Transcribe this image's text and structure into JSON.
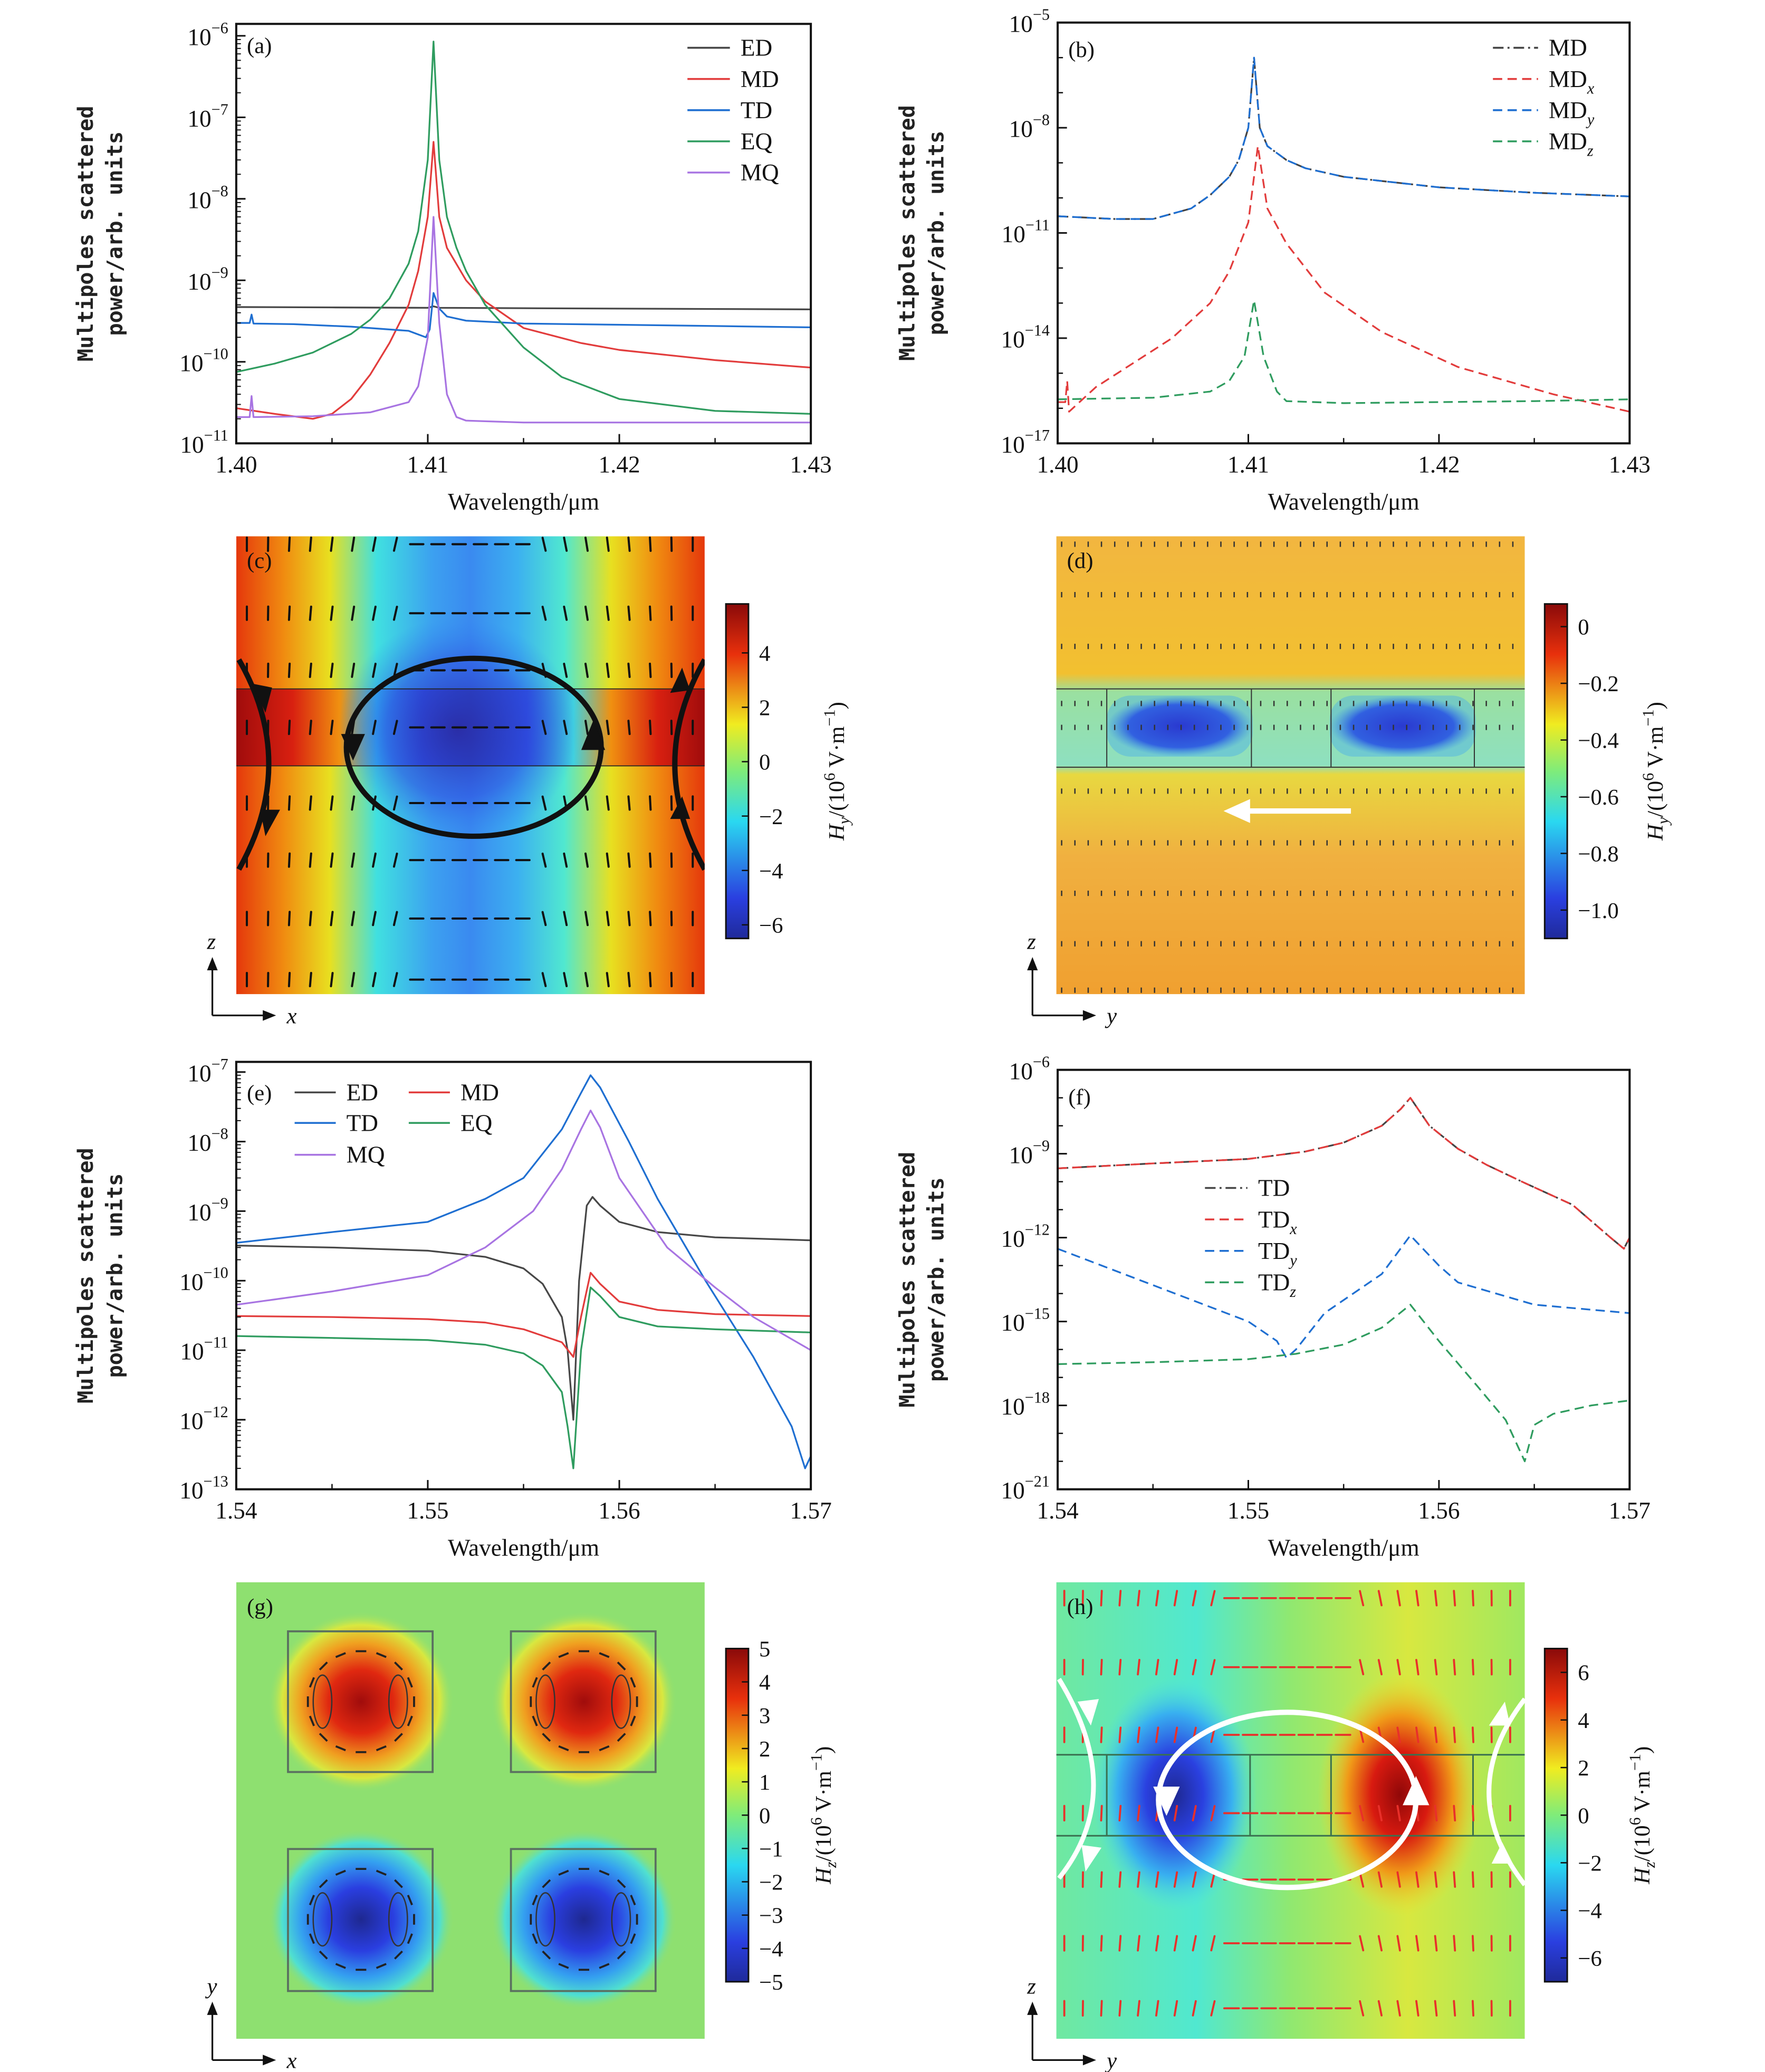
{
  "log_base": "10",
  "common": {
    "xlabel": "Wavelength/μm",
    "ylabel_line1": "Multipoles scattered",
    "ylabel_line2": "power/arb. units"
  },
  "chart_data": [
    {
      "panel": "(a)",
      "type": "line",
      "yscale": "log",
      "xlim": [
        1.4,
        1.43
      ],
      "xticks": [
        "1.40",
        "1.41",
        "1.42",
        "1.43"
      ],
      "ytick_exponents": [
        "−11",
        "−10",
        "−9",
        "−8",
        "−7",
        "−6"
      ],
      "ylim": [
        1e-11,
        1.4e-06
      ],
      "xlabel": "Wavelength/μm",
      "ylabel": "Multipoles scattered power/arb. units",
      "legend": "top-right",
      "series": [
        {
          "label": "ED",
          "color": "#474747",
          "style": "solid",
          "x": [
            1.4,
            1.405,
            1.41,
            1.4103,
            1.4106,
            1.415,
            1.42,
            1.425,
            1.43
          ],
          "y": [
            4.7e-10,
            4.65e-10,
            4.6e-10,
            4.8e-10,
            4.6e-10,
            4.55e-10,
            4.5e-10,
            4.45e-10,
            4.4e-10
          ]
        },
        {
          "label": "MD",
          "color": "#e23c3c",
          "style": "solid",
          "x": [
            1.4,
            1.402,
            1.404,
            1.405,
            1.406,
            1.407,
            1.408,
            1.409,
            1.4095,
            1.41,
            1.4103,
            1.4106,
            1.411,
            1.412,
            1.413,
            1.415,
            1.418,
            1.42,
            1.425,
            1.43
          ],
          "y": [
            2.7e-11,
            2.3e-11,
            2e-11,
            2.3e-11,
            3.5e-11,
            7e-11,
            1.7e-10,
            5e-10,
            1.3e-09,
            6e-09,
            5e-08,
            6e-09,
            2.5e-09,
            1e-09,
            5.5e-10,
            2.6e-10,
            1.7e-10,
            1.4e-10,
            1.05e-10,
            8.5e-11
          ]
        },
        {
          "label": "TD",
          "color": "#1f6fd1",
          "style": "solid",
          "x": [
            1.4,
            1.4007,
            1.4008,
            1.4009,
            1.403,
            1.406,
            1.409,
            1.4099,
            1.4101,
            1.4103,
            1.4106,
            1.411,
            1.412,
            1.415,
            1.42,
            1.425,
            1.43
          ],
          "y": [
            3e-10,
            3e-10,
            3.8e-10,
            2.95e-10,
            2.9e-10,
            2.7e-10,
            2.4e-10,
            2e-10,
            2.5e-10,
            7e-10,
            4.5e-10,
            3.6e-10,
            3.2e-10,
            2.95e-10,
            2.85e-10,
            2.75e-10,
            2.65e-10
          ]
        },
        {
          "label": "EQ",
          "color": "#2f9c5f",
          "style": "solid",
          "x": [
            1.4,
            1.402,
            1.404,
            1.406,
            1.407,
            1.408,
            1.409,
            1.4095,
            1.41,
            1.4103,
            1.4106,
            1.411,
            1.4115,
            1.412,
            1.413,
            1.415,
            1.417,
            1.42,
            1.425,
            1.43
          ],
          "y": [
            7.5e-11,
            9.5e-11,
            1.3e-10,
            2.2e-10,
            3.3e-10,
            6e-10,
            1.6e-09,
            4e-09,
            3e-08,
            8.5e-07,
            3e-08,
            6e-09,
            2.5e-09,
            1.3e-09,
            5e-10,
            1.5e-10,
            6.5e-11,
            3.5e-11,
            2.5e-11,
            2.3e-11
          ]
        },
        {
          "label": "MQ",
          "color": "#a874e2",
          "style": "solid",
          "x": [
            1.4,
            1.4007,
            1.4008,
            1.4009,
            1.404,
            1.407,
            1.409,
            1.4095,
            1.41,
            1.4103,
            1.4106,
            1.411,
            1.4115,
            1.412,
            1.415,
            1.42,
            1.43
          ],
          "y": [
            2.1e-11,
            2.1e-11,
            3.8e-11,
            2.1e-11,
            2.15e-11,
            2.4e-11,
            3.2e-11,
            5e-11,
            2e-10,
            6e-09,
            3e-10,
            4e-11,
            2.1e-11,
            1.9e-11,
            1.8e-11,
            1.8e-11,
            1.8e-11
          ]
        }
      ]
    },
    {
      "panel": "(b)",
      "type": "line",
      "yscale": "log",
      "xlim": [
        1.4,
        1.43
      ],
      "xticks": [
        "1.40",
        "1.41",
        "1.42",
        "1.43"
      ],
      "ytick_exponents": [
        "−17",
        "−14",
        "−11",
        "−8",
        "−5"
      ],
      "ylim": [
        1e-17,
        1e-05
      ],
      "xlabel": "Wavelength/μm",
      "ylabel": "Multipoles scattered power/arb. units",
      "legend": "top-right",
      "series": [
        {
          "label": "MD",
          "sub": "",
          "color": "#444444",
          "style": "dashdot",
          "x": [
            1.4,
            1.403,
            1.405,
            1.407,
            1.408,
            1.409,
            1.4095,
            1.41,
            1.4103,
            1.4106,
            1.411,
            1.412,
            1.413,
            1.415,
            1.42,
            1.425,
            1.43
          ],
          "y": [
            3e-11,
            2.5e-11,
            2.5e-11,
            5e-11,
            1.2e-10,
            4e-10,
            1.2e-09,
            1e-08,
            1e-06,
            1e-08,
            3e-09,
            1.2e-09,
            7e-10,
            4e-10,
            2e-10,
            1.4e-10,
            1.1e-10
          ]
        },
        {
          "label": "MD",
          "sub": "x",
          "color": "#e23c3c",
          "style": "dashed",
          "x": [
            1.4,
            1.4004,
            1.4005,
            1.4006,
            1.402,
            1.404,
            1.406,
            1.408,
            1.409,
            1.41,
            1.4105,
            1.411,
            1.412,
            1.414,
            1.417,
            1.421,
            1.426,
            1.43
          ],
          "y": [
            1.5e-16,
            1.5e-16,
            6e-16,
            8e-17,
            4e-16,
            2e-15,
            1e-14,
            1e-13,
            8e-13,
            2e-11,
            3e-09,
            5e-11,
            5e-12,
            2e-13,
            1.5e-14,
            1.5e-15,
            2.5e-16,
            8e-17
          ]
        },
        {
          "label": "MD",
          "sub": "y",
          "color": "#1f6fd1",
          "style": "dashed",
          "x": [
            1.4,
            1.403,
            1.405,
            1.407,
            1.408,
            1.409,
            1.4095,
            1.41,
            1.4103,
            1.4106,
            1.411,
            1.412,
            1.413,
            1.415,
            1.42,
            1.425,
            1.43
          ],
          "y": [
            3e-11,
            2.5e-11,
            2.5e-11,
            5e-11,
            1.2e-10,
            4e-10,
            1.2e-09,
            1e-08,
            1e-06,
            1e-08,
            3e-09,
            1.2e-09,
            7e-10,
            4e-10,
            2e-10,
            1.4e-10,
            1.1e-10
          ]
        },
        {
          "label": "MD",
          "sub": "z",
          "color": "#2f9c5f",
          "style": "dashed",
          "x": [
            1.4,
            1.405,
            1.408,
            1.409,
            1.4098,
            1.4103,
            1.4108,
            1.4115,
            1.412,
            1.415,
            1.42,
            1.425,
            1.43
          ],
          "y": [
            1.8e-16,
            2e-16,
            3e-16,
            6e-16,
            3e-15,
            1.2e-13,
            3e-15,
            3e-16,
            1.6e-16,
            1.4e-16,
            1.5e-16,
            1.6e-16,
            1.8e-16
          ]
        }
      ]
    },
    {
      "panel": "(e)",
      "type": "line",
      "yscale": "log",
      "xlim": [
        1.54,
        1.57
      ],
      "xticks": [
        "1.54",
        "1.55",
        "1.56",
        "1.57"
      ],
      "ytick_exponents": [
        "−13",
        "−12",
        "−11",
        "−10",
        "−9",
        "−8",
        "−7"
      ],
      "ylim": [
        1e-13,
        1.4e-07
      ],
      "xlabel": "Wavelength/μm",
      "ylabel": "Multipoles scattered power/arb. units",
      "legend": "top-left",
      "series": [
        {
          "label": "ED",
          "color": "#474747",
          "style": "solid",
          "x": [
            1.54,
            1.545,
            1.55,
            1.553,
            1.555,
            1.556,
            1.557,
            1.5573,
            1.5576,
            1.5579,
            1.5583,
            1.5586,
            1.559,
            1.56,
            1.562,
            1.565,
            1.57
          ],
          "y": [
            3.2e-10,
            3e-10,
            2.7e-10,
            2.2e-10,
            1.5e-10,
            9e-11,
            3e-11,
            1e-11,
            1e-12,
            1e-10,
            1.2e-09,
            1.6e-09,
            1.2e-09,
            7e-10,
            5e-10,
            4.2e-10,
            3.8e-10
          ]
        },
        {
          "label": "MD",
          "color": "#e23c3c",
          "style": "solid",
          "x": [
            1.54,
            1.545,
            1.55,
            1.553,
            1.555,
            1.557,
            1.5576,
            1.558,
            1.5585,
            1.559,
            1.56,
            1.562,
            1.565,
            1.57
          ],
          "y": [
            3.1e-11,
            3e-11,
            2.8e-11,
            2.5e-11,
            2e-11,
            1.3e-11,
            8e-12,
            3e-11,
            1.3e-10,
            9e-11,
            5e-11,
            3.8e-11,
            3.3e-11,
            3.1e-11
          ]
        },
        {
          "label": "TD",
          "color": "#1f6fd1",
          "style": "solid",
          "x": [
            1.54,
            1.545,
            1.55,
            1.553,
            1.555,
            1.557,
            1.558,
            1.5585,
            1.559,
            1.5605,
            1.562,
            1.5645,
            1.567,
            1.569,
            1.5697,
            1.57
          ],
          "y": [
            3.5e-10,
            5e-10,
            7e-10,
            1.5e-09,
            3e-09,
            1.5e-08,
            5e-08,
            9e-08,
            6e-08,
            1e-08,
            1.5e-09,
            1e-10,
            8e-12,
            8e-13,
            2e-13,
            3e-13
          ]
        },
        {
          "label": "EQ",
          "color": "#2f9c5f",
          "style": "solid",
          "x": [
            1.54,
            1.545,
            1.55,
            1.553,
            1.555,
            1.556,
            1.557,
            1.5573,
            1.5576,
            1.558,
            1.5585,
            1.559,
            1.56,
            1.562,
            1.565,
            1.57
          ],
          "y": [
            1.6e-11,
            1.5e-11,
            1.4e-11,
            1.2e-11,
            9e-12,
            6e-12,
            2.5e-12,
            8e-13,
            2e-13,
            1e-11,
            8e-11,
            6e-11,
            3e-11,
            2.2e-11,
            2e-11,
            1.8e-11
          ]
        },
        {
          "label": "MQ",
          "color": "#a874e2",
          "style": "solid",
          "x": [
            1.54,
            1.545,
            1.55,
            1.553,
            1.5555,
            1.557,
            1.558,
            1.5585,
            1.559,
            1.56,
            1.5625,
            1.565,
            1.567,
            1.57
          ],
          "y": [
            4.5e-11,
            7e-11,
            1.2e-10,
            3e-10,
            1e-09,
            4e-09,
            1.5e-08,
            2.8e-08,
            1.6e-08,
            3e-09,
            3e-10,
            8e-11,
            3e-11,
            1e-11
          ]
        }
      ]
    },
    {
      "panel": "(f)",
      "type": "line",
      "yscale": "log",
      "xlim": [
        1.54,
        1.57
      ],
      "xticks": [
        "1.54",
        "1.55",
        "1.56",
        "1.57"
      ],
      "ytick_exponents": [
        "−21",
        "−18",
        "−15",
        "−12",
        "−9",
        "−6"
      ],
      "ylim": [
        1e-21,
        1e-06
      ],
      "xlabel": "Wavelength/μm",
      "ylabel": "Multipoles scattered power/arb. units",
      "legend": "center",
      "series": [
        {
          "label": "TD",
          "sub": "",
          "color": "#444444",
          "style": "dashdot",
          "x": [
            1.54,
            1.545,
            1.55,
            1.553,
            1.555,
            1.557,
            1.558,
            1.5585,
            1.5595,
            1.561,
            1.5625,
            1.5645,
            1.567,
            1.569,
            1.5697,
            1.57
          ],
          "y": [
            3e-10,
            4.5e-10,
            6.5e-10,
            1.2e-09,
            2.5e-09,
            1e-08,
            4e-08,
            1e-07,
            1e-08,
            1.5e-09,
            4e-10,
            9e-11,
            1.5e-11,
            1e-12,
            4e-13,
            1e-12
          ]
        },
        {
          "label": "TD",
          "sub": "x",
          "color": "#e23c3c",
          "style": "dashed",
          "x": [
            1.54,
            1.545,
            1.55,
            1.553,
            1.555,
            1.557,
            1.558,
            1.5585,
            1.5595,
            1.561,
            1.5625,
            1.5645,
            1.567,
            1.569,
            1.5697,
            1.57
          ],
          "y": [
            3e-10,
            4.5e-10,
            6.5e-10,
            1.2e-09,
            2.5e-09,
            1e-08,
            4e-08,
            1e-07,
            1e-08,
            1.5e-09,
            4e-10,
            9e-11,
            1.5e-11,
            1e-12,
            4e-13,
            1e-12
          ]
        },
        {
          "label": "TD",
          "sub": "y",
          "color": "#1f6fd1",
          "style": "dashed",
          "x": [
            1.54,
            1.545,
            1.55,
            1.5515,
            1.552,
            1.5525,
            1.554,
            1.557,
            1.5585,
            1.56,
            1.561,
            1.565,
            1.57
          ],
          "y": [
            4e-13,
            2e-14,
            1e-15,
            2e-16,
            5e-17,
            1e-16,
            2e-15,
            5e-14,
            1.2e-12,
            1e-13,
            2.5e-14,
            4e-15,
            2e-15
          ]
        },
        {
          "label": "TD",
          "sub": "z",
          "color": "#2f9c5f",
          "style": "dashed",
          "x": [
            1.54,
            1.545,
            1.55,
            1.5525,
            1.555,
            1.557,
            1.5585,
            1.56,
            1.562,
            1.5635,
            1.5645,
            1.565,
            1.566,
            1.568,
            1.57
          ],
          "y": [
            3e-17,
            3.5e-17,
            4.5e-17,
            7e-17,
            1.5e-16,
            6e-16,
            4e-15,
            2e-16,
            5e-18,
            3e-19,
            1e-20,
            2e-19,
            5e-19,
            1e-18,
            1.5e-18
          ]
        }
      ]
    }
  ],
  "field_maps": [
    {
      "panel": "(c)",
      "type": "heatmap",
      "colormap": "jet",
      "vector_color": "#111111",
      "loop_color": "#111111",
      "colorbar": {
        "H": "H",
        "sub": "y",
        "pre": "/(10",
        "sup1": "6",
        "mid": " V·m",
        "sup2": "−1",
        "post": ")",
        "ticks": [
          "4",
          "2",
          "0",
          "−2",
          "−4",
          "−6"
        ],
        "range": [
          -6.5,
          5.8
        ]
      },
      "axes": {
        "horizontal": "x",
        "vertical": "z"
      }
    },
    {
      "panel": "(d)",
      "type": "heatmap",
      "colormap": "jet",
      "vector_color": "#222222",
      "arrow_color": "#ffffff",
      "colorbar": {
        "H": "H",
        "sub": "y",
        "pre": "/(10",
        "sup1": "6",
        "mid": " V·m",
        "sup2": "−1",
        "post": ")",
        "ticks": [
          "0",
          "−0.2",
          "−0.4",
          "−0.6",
          "−0.8",
          "−1.0"
        ],
        "range": [
          -1.1,
          0.08
        ]
      },
      "axes": {
        "horizontal": "y",
        "vertical": "z"
      }
    },
    {
      "panel": "(g)",
      "type": "heatmap",
      "colormap": "jet",
      "vector_color": "#222222",
      "colorbar": {
        "H": "H",
        "sub": "z",
        "pre": "/(10",
        "sup1": "6",
        "mid": " V·m",
        "sup2": "−1",
        "post": ")",
        "ticks": [
          "5",
          "4",
          "3",
          "2",
          "1",
          "0",
          "−1",
          "−2",
          "−3",
          "−4",
          "−5"
        ],
        "range": [
          -5,
          5
        ]
      },
      "axes": {
        "horizontal": "x",
        "vertical": "y"
      }
    },
    {
      "panel": "(h)",
      "type": "heatmap",
      "colormap": "jet",
      "vector_color": "#e8302a",
      "loop_color": "#ffffff",
      "colorbar": {
        "H": "H",
        "sub": "z",
        "pre": "/(10",
        "sup1": "6",
        "mid": " V·m",
        "sup2": "−1",
        "post": ")",
        "ticks": [
          "6",
          "4",
          "2",
          "0",
          "−2",
          "−4",
          "−6"
        ],
        "range": [
          -7,
          7
        ]
      },
      "axes": {
        "horizontal": "y",
        "vertical": "z"
      }
    }
  ]
}
